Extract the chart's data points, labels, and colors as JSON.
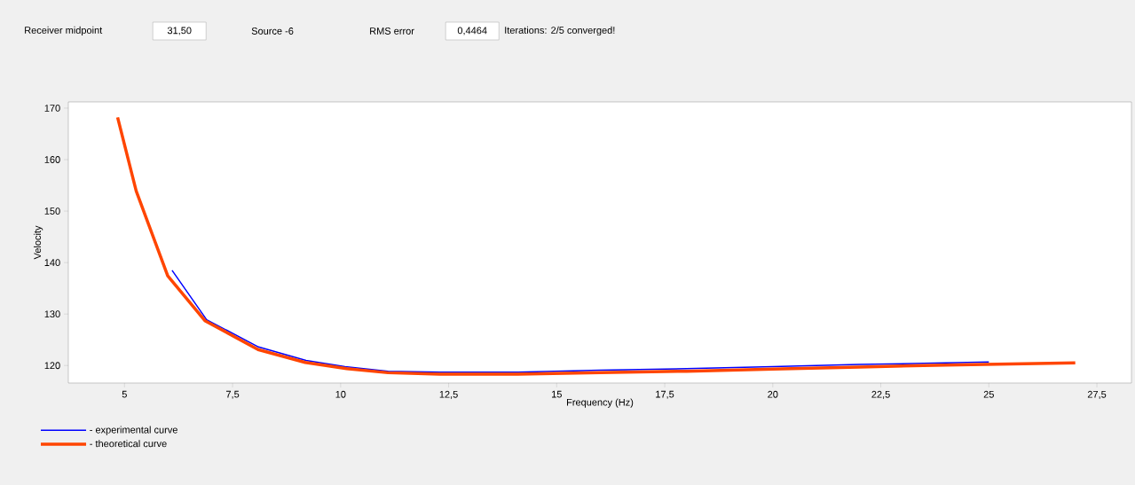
{
  "chart_data": {
    "type": "line",
    "xlabel": "Frequency (Hz)",
    "ylabel": "Velocity",
    "annotations": [
      "Receiver midpoint",
      "31,50",
      "Source -6",
      "RMS error",
      "0,4464",
      "Iterations: 2/5 converged!"
    ],
    "series": [
      {
        "name": "- experimental curve",
        "color": "#0000ff",
        "x": [
          6.1,
          6.9,
          8.1,
          9.2,
          10.1,
          11.1,
          12.3,
          14.1,
          16,
          18,
          20,
          22,
          24,
          25.0
        ],
        "values": [
          138.5,
          128.9,
          123.6,
          121,
          119.8,
          118.9,
          118.7,
          118.7,
          119.1,
          119.4,
          119.8,
          120.2,
          120.5,
          120.7
        ]
      },
      {
        "name": "- theoretical curve",
        "color": "#ff4500",
        "x": [
          4.84,
          5.27,
          6.0,
          6.86,
          8.09,
          9.18,
          10.14,
          11.1,
          12.3,
          14.1,
          16,
          18,
          20,
          22,
          24,
          27.0
        ],
        "values": [
          168.2,
          153.9,
          137.4,
          128.7,
          123.1,
          120.6,
          119.4,
          118.6,
          118.3,
          118.3,
          118.6,
          118.9,
          119.3,
          119.7,
          120.1,
          120.5
        ]
      }
    ],
    "xlim": [
      3.7,
      28.3
    ],
    "ylim": [
      116.6,
      171.2
    ],
    "xticks": [
      5,
      {
        "value": 7.5,
        "label": "7,5"
      },
      10,
      {
        "value": 12.5,
        "label": "12,5"
      },
      15,
      {
        "value": 17.5,
        "label": "17,5"
      },
      20,
      {
        "value": 22.5,
        "label": "22,5"
      },
      25,
      {
        "value": 27.5,
        "label": "27,5"
      }
    ],
    "yticks": [
      120,
      130,
      140,
      150,
      160,
      170
    ],
    "grid": false,
    "legend": "bottom left",
    "marker": "none",
    "line_style": "solid"
  }
}
